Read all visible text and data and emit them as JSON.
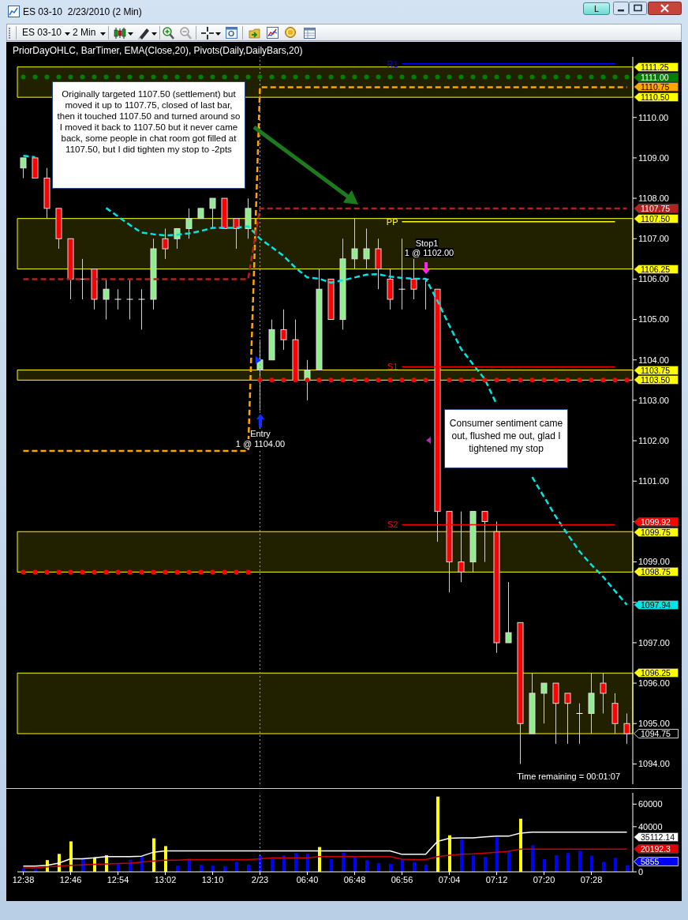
{
  "chart_data": [
    {
      "type": "candlestick",
      "title": "ES 03-10  2/23/2010 (2 Min)",
      "subtitle": "PriorDayOHLC, BarTimer, EMA(Close,20), Pivots(Daily,DailyBars,20)",
      "categories": [
        "12:38",
        null,
        null,
        null,
        "12:46",
        null,
        null,
        null,
        "12:54",
        null,
        null,
        null,
        "13:02",
        null,
        null,
        null,
        "13:10",
        null,
        null,
        null,
        "2/23",
        null,
        null,
        null,
        "06:40",
        null,
        null,
        null,
        "06:48",
        null,
        null,
        null,
        "06:56",
        null,
        null,
        null,
        "07:04",
        null,
        null,
        null,
        "07:12",
        null,
        null,
        null,
        "07:20",
        null,
        null,
        null,
        "07:28",
        null,
        null,
        null
      ],
      "ohlc": [
        [
          1108.75,
          1109.0,
          1108.5,
          1109.0
        ],
        [
          1109.0,
          1109.0,
          1108.5,
          1108.5
        ],
        [
          1108.5,
          1108.75,
          1107.5,
          1107.75
        ],
        [
          1107.75,
          1107.75,
          1106.75,
          1107.0
        ],
        [
          1107.0,
          1107.0,
          1105.5,
          1106.0
        ],
        [
          1106.0,
          1106.5,
          1105.5,
          1106.0
        ],
        [
          1106.25,
          1106.25,
          1105.25,
          1105.5
        ],
        [
          1105.5,
          1106.0,
          1105.0,
          1105.75
        ],
        [
          1105.5,
          1105.75,
          1105.25,
          1105.5
        ],
        [
          1105.5,
          1106.0,
          1105.0,
          1105.5
        ],
        [
          1105.5,
          1105.75,
          1104.75,
          1105.5
        ],
        [
          1105.5,
          1107.0,
          1105.25,
          1106.75
        ],
        [
          1107.0,
          1107.25,
          1106.5,
          1106.75
        ],
        [
          1107.0,
          1107.25,
          1106.75,
          1107.25
        ],
        [
          1107.25,
          1107.75,
          1107.0,
          1107.5
        ],
        [
          1107.5,
          1107.75,
          1107.5,
          1107.75
        ],
        [
          1107.75,
          1108.0,
          1107.25,
          1108.0
        ],
        [
          1108.0,
          1108.0,
          1107.25,
          1107.25
        ],
        [
          1107.5,
          1107.5,
          1106.75,
          1107.25
        ],
        [
          1107.25,
          1108.0,
          1107.0,
          1107.75
        ],
        [
          1103.75,
          1104.5,
          1102.75,
          1104.0
        ],
        [
          1104.0,
          1105.0,
          1104.0,
          1104.75
        ],
        [
          1104.75,
          1105.25,
          1104.25,
          1104.5
        ],
        [
          1104.5,
          1105.0,
          1103.5,
          1103.5
        ],
        [
          1103.5,
          1104.0,
          1103.0,
          1103.75
        ],
        [
          1103.75,
          1106.25,
          1103.75,
          1105.75
        ],
        [
          1106.0,
          1106.0,
          1105.0,
          1105.0
        ],
        [
          1105.0,
          1107.0,
          1104.75,
          1106.5
        ],
        [
          1106.5,
          1107.5,
          1106.25,
          1106.75
        ],
        [
          1106.5,
          1107.25,
          1106.25,
          1106.75
        ],
        [
          1106.75,
          1107.0,
          1105.75,
          1106.25
        ],
        [
          1106.0,
          1106.25,
          1105.25,
          1105.5
        ],
        [
          1105.75,
          1107.0,
          1105.25,
          1105.75
        ],
        [
          1106.0,
          1106.5,
          1105.5,
          1105.75
        ],
        [
          1106.0,
          1106.0,
          1105.25,
          1106.0
        ],
        [
          1105.75,
          1105.75,
          1099.5,
          1100.25
        ],
        [
          1100.25,
          1100.25,
          1098.25,
          1099.0
        ],
        [
          1099.0,
          1100.25,
          1098.5,
          1098.75
        ],
        [
          1099.0,
          1100.25,
          1098.75,
          1100.25
        ],
        [
          1100.25,
          1100.25,
          1099.0,
          1100.0
        ],
        [
          1099.75,
          1100.0,
          1096.75,
          1097.0
        ],
        [
          1097.0,
          1098.5,
          1097.0,
          1097.25
        ],
        [
          1097.5,
          1097.5,
          1094.0,
          1095.0
        ],
        [
          1094.75,
          1096.25,
          1094.75,
          1095.75
        ],
        [
          1095.75,
          1096.0,
          1095.0,
          1096.0
        ],
        [
          1096.0,
          1096.0,
          1094.5,
          1095.5
        ],
        [
          1095.75,
          1095.75,
          1094.5,
          1095.5
        ],
        [
          1095.25,
          1095.5,
          1094.5,
          1095.25
        ],
        [
          1095.25,
          1096.25,
          1094.75,
          1095.75
        ],
        [
          1096.0,
          1096.25,
          1095.25,
          1095.75
        ],
        [
          1095.5,
          1095.75,
          1094.75,
          1095.0
        ],
        [
          1095.0,
          1095.25,
          1094.5,
          1094.75
        ]
      ],
      "colors": [
        "#90ee90",
        "#ff0000",
        "#ff0000",
        "#ff0000",
        "#ff0000",
        "#ffffff",
        "#ff0000",
        "#90ee90",
        "#ffffff",
        "#ffffff",
        "#ffffff",
        "#90ee90",
        "#ff0000",
        "#90ee90",
        "#90ee90",
        "#90ee90",
        "#90ee90",
        "#ff0000",
        "#ff0000",
        "#90ee90",
        "#90ee90",
        "#90ee90",
        "#ff0000",
        "#ff0000",
        "#90ee90",
        "#90ee90",
        "#ff0000",
        "#90ee90",
        "#90ee90",
        "#90ee90",
        "#ff0000",
        "#ff0000",
        "#ffffff",
        "#ff0000",
        "#ffffff",
        "#ff0000",
        "#ff0000",
        "#ff0000",
        "#90ee90",
        "#ff0000",
        "#ff0000",
        "#90ee90",
        "#ff0000",
        "#90ee90",
        "#90ee90",
        "#ff0000",
        "#ff0000",
        "#ffffff",
        "#90ee90",
        "#ff0000",
        "#ff0000",
        "#ff0000"
      ],
      "series": [
        {
          "type": "line",
          "color": "#00e5e5",
          "line_style": "dashed",
          "values": [
            1109.05,
            1109.02,
            null,
            null,
            null,
            null,
            null,
            1107.76,
            1107.55,
            1107.34,
            1107.15,
            1107.11,
            1107.08,
            1107.1,
            1107.13,
            1107.19,
            1107.27,
            1107.27,
            1107.27,
            1107.31,
            1107.0,
            1106.79,
            1106.57,
            1106.28,
            1106.04,
            1106.01,
            1105.91,
            1105.97,
            1106.04,
            1106.11,
            1106.12,
            1106.06,
            1106.03,
            1106.01,
            1106.01,
            1105.46,
            1104.85,
            1104.27,
            1103.89,
            1103.52,
            1102.9,
            null,
            null,
            1101.1,
            1100.61,
            1100.12,
            1099.68,
            1099.26,
            1098.93,
            1098.63,
            1098.28,
            1097.94
          ]
        },
        {
          "type": "line",
          "color": "#ffa500",
          "line_style": "dashed",
          "values": [
            1101.75,
            1101.75,
            1101.75,
            1101.75,
            1101.75,
            1101.75,
            1101.75,
            1101.75,
            1101.75,
            1101.75,
            1101.75,
            1101.75,
            1101.75,
            1101.75,
            1101.75,
            1101.75,
            1101.75,
            1101.75,
            1101.75,
            1101.75,
            1110.75,
            1110.75,
            1110.75,
            1110.75,
            1110.75,
            1110.75,
            1110.75,
            1110.75,
            1110.75,
            1110.75,
            1110.75,
            1110.75,
            1110.75,
            1110.75,
            1110.75,
            1110.75,
            1110.75,
            1110.75,
            1110.75,
            1110.75,
            1110.75,
            1110.75,
            1110.75,
            1110.75,
            1110.75,
            1110.75,
            1110.75,
            1110.75,
            1110.75,
            1110.75,
            1110.75,
            1110.75
          ]
        },
        {
          "type": "line",
          "color": "#b22222",
          "line_style": "dashed",
          "values": [
            1106.0,
            1106.0,
            1106.0,
            1106.0,
            1106.0,
            1106.0,
            1106.0,
            1106.0,
            1106.0,
            1106.0,
            1106.0,
            1106.0,
            1106.0,
            1106.0,
            1106.0,
            1106.0,
            1106.0,
            1106.0,
            1106.0,
            1106.0,
            1107.75,
            1107.75,
            1107.75,
            1107.75,
            1107.75,
            1107.75,
            1107.75,
            1107.75,
            1107.75,
            1107.75,
            1107.75,
            1107.75,
            1107.75,
            1107.75,
            1107.75,
            1107.75,
            1107.75,
            1107.75,
            1107.75,
            1107.75,
            1107.75,
            1107.75,
            1107.75,
            1107.75,
            1107.75,
            1107.75,
            1107.75,
            1107.75,
            1107.75,
            1107.75,
            1107.75,
            1107.75
          ]
        },
        {
          "type": "scatter",
          "marker": "circle",
          "color": "#008000",
          "values": [
            1111.0,
            1111.0,
            1111.0,
            1111.0,
            1111.0,
            1111.0,
            1111.0,
            1111.0,
            1111.0,
            1111.0,
            1111.0,
            1111.0,
            1111.0,
            1111.0,
            1111.0,
            1111.0,
            1111.0,
            1111.0,
            1111.0,
            1111.0,
            1111.0,
            1111.0,
            1111.0,
            1111.0,
            1111.0,
            1111.0,
            1111.0,
            1111.0,
            1111.0,
            1111.0,
            1111.0,
            1111.0,
            1111.0,
            1111.0,
            1111.0,
            1111.0,
            1111.0,
            1111.0,
            1111.0,
            1111.0,
            1111.0,
            1111.0,
            1111.0,
            1111.0,
            1111.0,
            1111.0,
            1111.0,
            1111.0,
            1111.0,
            1111.0,
            1111.0,
            1111.0
          ]
        },
        {
          "type": "scatter",
          "marker": "circle",
          "color": "#ff0000",
          "values": [
            1098.75,
            1098.75,
            1098.75,
            1098.75,
            1098.75,
            1098.75,
            1098.75,
            1098.75,
            1098.75,
            1098.75,
            1098.75,
            1098.75,
            1098.75,
            1098.75,
            1098.75,
            1098.75,
            1098.75,
            1098.75,
            1098.75,
            1098.75,
            1103.5,
            1103.5,
            1103.5,
            1103.5,
            1103.5,
            1103.5,
            1103.5,
            1103.5,
            1103.5,
            1103.5,
            1103.5,
            1103.5,
            1103.5,
            1103.5,
            1103.5,
            1103.5,
            1103.5,
            1103.5,
            1103.5,
            1103.5,
            1103.5,
            1103.5,
            1103.5,
            1103.5,
            1103.5,
            1103.5,
            1103.5,
            1103.5,
            1103.5,
            1103.5,
            1103.5,
            1103.5
          ]
        },
        {
          "type": "line",
          "name": "R1",
          "color": "#0000ff",
          "values": [
            null,
            null,
            null,
            null,
            null,
            null,
            null,
            null,
            null,
            null,
            null,
            null,
            null,
            null,
            null,
            null,
            null,
            null,
            null,
            null,
            null,
            null,
            null,
            null,
            null,
            null,
            null,
            null,
            null,
            null,
            null,
            null,
            1111.33,
            1111.33,
            1111.33,
            1111.33,
            1111.33,
            1111.33,
            1111.33,
            1111.33,
            1111.33,
            1111.33,
            1111.33,
            1111.33,
            1111.33,
            1111.33,
            1111.33,
            1111.33,
            1111.33,
            1111.33,
            1111.33,
            null
          ]
        },
        {
          "type": "line",
          "name": "PP",
          "color": "#ffff00",
          "values": [
            null,
            null,
            null,
            null,
            null,
            null,
            null,
            null,
            null,
            null,
            null,
            null,
            null,
            null,
            null,
            null,
            null,
            null,
            null,
            null,
            null,
            null,
            null,
            null,
            null,
            null,
            null,
            null,
            null,
            null,
            null,
            null,
            1107.42,
            1107.42,
            1107.42,
            1107.42,
            1107.42,
            1107.42,
            1107.42,
            1107.42,
            1107.42,
            1107.42,
            1107.42,
            1107.42,
            1107.42,
            1107.42,
            1107.42,
            1107.42,
            1107.42,
            1107.42,
            1107.42,
            null
          ]
        },
        {
          "type": "line",
          "name": "S1",
          "color": "#ff0000",
          "values": [
            null,
            null,
            null,
            null,
            null,
            null,
            null,
            null,
            null,
            null,
            null,
            null,
            null,
            null,
            null,
            null,
            null,
            null,
            null,
            null,
            null,
            null,
            null,
            null,
            null,
            null,
            null,
            null,
            null,
            null,
            null,
            null,
            1103.83,
            1103.83,
            1103.83,
            1103.83,
            1103.83,
            1103.83,
            1103.83,
            1103.83,
            1103.83,
            1103.83,
            1103.83,
            1103.83,
            1103.83,
            1103.83,
            1103.83,
            1103.83,
            1103.83,
            1103.83,
            1103.83,
            null
          ]
        },
        {
          "type": "line",
          "name": "S2",
          "color": "#ff0000",
          "values": [
            null,
            null,
            null,
            null,
            null,
            null,
            null,
            null,
            null,
            null,
            null,
            null,
            null,
            null,
            null,
            null,
            null,
            null,
            null,
            null,
            null,
            null,
            null,
            null,
            null,
            null,
            null,
            null,
            null,
            null,
            null,
            null,
            1099.92,
            1099.92,
            1099.92,
            1099.92,
            1099.92,
            1099.92,
            1099.92,
            1099.92,
            1099.92,
            1099.92,
            1099.92,
            1099.92,
            1099.92,
            1099.92,
            1099.92,
            1099.92,
            1099.92,
            1099.92,
            1099.92,
            null
          ]
        }
      ],
      "ylim": [
        1093.5,
        1111.5
      ],
      "yticks": [
        {
          "value": 1094,
          "label": "1094.00"
        },
        {
          "value": 1095,
          "label": "1095.00"
        },
        {
          "value": 1096,
          "label": "1096.00"
        },
        {
          "value": 1097,
          "label": "1097.00"
        },
        {
          "value": 1098,
          "label": null
        },
        {
          "value": 1099,
          "label": "1099.00"
        },
        {
          "value": 1100,
          "label": null
        },
        {
          "value": 1101,
          "label": "1101.00"
        },
        {
          "value": 1102,
          "label": "1102.00"
        },
        {
          "value": 1103,
          "label": "1103.00"
        },
        {
          "value": 1104,
          "label": "1104.00"
        },
        {
          "value": 1105,
          "label": "1105.00"
        },
        {
          "value": 1106,
          "label": "1106.00"
        },
        {
          "value": 1107,
          "label": "1107.00"
        },
        {
          "value": 1108,
          "label": "1108.00"
        },
        {
          "value": 1109,
          "label": "1109.00"
        },
        {
          "value": 1110,
          "label": "1110.00"
        }
      ],
      "tick_labels": "y",
      "bands": [
        {
          "axis": "y",
          "from": 1110.5,
          "to": 1111.25,
          "color": "#ffff00"
        },
        {
          "axis": "y",
          "from": 1106.25,
          "to": 1107.5,
          "color": "#ffff00"
        },
        {
          "axis": "y",
          "from": 1103.5,
          "to": 1103.75,
          "color": "#ffff00"
        },
        {
          "axis": "y",
          "from": 1098.75,
          "to": 1099.75,
          "color": "#ffff00"
        },
        {
          "axis": "y",
          "from": 1094.75,
          "to": 1096.25,
          "color": "#ffff00"
        }
      ],
      "ref_lines": [
        {
          "axis": "x",
          "value": "2/23",
          "color": "#9a9a9a",
          "line_style": "dotted"
        }
      ],
      "annotations": [
        "Originally targeted 1107.50 (settlement) but moved it up to 1107.75, closed of last bar, then it touched 1107.50 and turned around so I moved it back to 1107.50 but it never came back, some people in chat room got filled at 1107.50, but I did tighten my stop to -2pts",
        "Consumer sentiment came out, flushed me out, glad I tightened my stop",
        "Entry",
        "1 @ 1104.00",
        "Stop1",
        "1 @ 1102.00",
        "Time remaining = 00:01:07",
        "ES 03-10",
        "2 Min",
        "L",
        "1111.25",
        "1111.00",
        "1110.75",
        "1110.50",
        "1107.75",
        "1107.50",
        "1106.25",
        "1103.75",
        "1103.50",
        "1099.92",
        "1099.75",
        "1098.75",
        "1097.94",
        "1096.25",
        "1094.75"
      ]
    },
    {
      "type": "bar",
      "categories": [
        "12:38",
        null,
        null,
        null,
        "12:46",
        null,
        null,
        null,
        "12:54",
        null,
        null,
        null,
        "13:02",
        null,
        null,
        null,
        "13:10",
        null,
        null,
        null,
        "2/23",
        null,
        null,
        null,
        "06:40",
        null,
        null,
        null,
        "06:48",
        null,
        null,
        null,
        "06:56",
        null,
        null,
        null,
        "07:04",
        null,
        null,
        null,
        "07:12",
        null,
        null,
        null,
        "07:20",
        null,
        null,
        null,
        "07:28",
        null,
        null,
        null
      ],
      "series": [
        {
          "values": [
            3100,
            2300,
            10400,
            15900,
            27000,
            12400,
            12800,
            14700,
            7000,
            10800,
            13500,
            29700,
            22800,
            5400,
            11600,
            6200,
            5400,
            5000,
            8900,
            6200,
            14700,
            11600,
            14700,
            16600,
            15900,
            22000,
            11200,
            17000,
            13900,
            10400,
            7700,
            7000,
            10800,
            8600,
            6200,
            66700,
            32400,
            29000,
            14700,
            13200,
            30500,
            18600,
            47100,
            23500,
            11200,
            14700,
            16600,
            18600,
            14300,
            8900,
            12400,
            5855
          ],
          "colors": [
            "#0000ff",
            "#0000ff",
            "#ffff00",
            "#ffff00",
            "#ffff00",
            "#0000ff",
            "#ffff00",
            "#ffff00",
            "#0000ff",
            "#0000ff",
            "#0000ff",
            "#ffff00",
            "#ffff00",
            "#0000ff",
            "#0000ff",
            "#0000ff",
            "#0000ff",
            "#0000ff",
            "#0000ff",
            "#0000ff",
            "#0000ff",
            "#0000ff",
            "#0000ff",
            "#0000ff",
            "#0000ff",
            "#ffff00",
            "#0000ff",
            "#0000ff",
            "#0000ff",
            "#0000ff",
            "#0000ff",
            "#0000ff",
            "#0000ff",
            "#0000ff",
            "#0000ff",
            "#ffff00",
            "#ffff00",
            "#0000ff",
            "#0000ff",
            "#0000ff",
            "#0000ff",
            "#0000ff",
            "#ffff00",
            "#0000ff",
            "#0000ff",
            "#0000ff",
            "#0000ff",
            "#0000ff",
            "#0000ff",
            "#0000ff",
            "#0000ff",
            "#0000ff"
          ]
        },
        {
          "type": "line",
          "color": "#ffffff",
          "values": [
            5000,
            5000,
            5800,
            7700,
            11600,
            11600,
            12400,
            13500,
            13500,
            13500,
            13900,
            17400,
            18600,
            18600,
            18600,
            18600,
            18600,
            18600,
            18600,
            18600,
            18600,
            18600,
            18600,
            18600,
            18600,
            18600,
            18600,
            18600,
            18600,
            18600,
            18600,
            18600,
            15500,
            15500,
            15500,
            27000,
            29700,
            30100,
            30100,
            30900,
            31600,
            31600,
            34300,
            35100,
            35100,
            35100,
            35100,
            35100,
            35100,
            35100,
            35100,
            35112.14
          ]
        },
        {
          "type": "line",
          "color": "#cc0000",
          "values": [
            3500,
            3500,
            4300,
            5000,
            5800,
            6200,
            6600,
            7000,
            7300,
            7700,
            8600,
            9700,
            10400,
            10400,
            10800,
            10800,
            10800,
            10800,
            10800,
            10800,
            11600,
            12400,
            12400,
            12400,
            12400,
            13500,
            13500,
            13500,
            13500,
            13500,
            13500,
            13500,
            11200,
            10800,
            10800,
            13500,
            14700,
            15500,
            15900,
            16600,
            17400,
            18200,
            20100,
            20100,
            20100,
            20100,
            20100,
            20100,
            20100,
            20100,
            20100,
            20192.3
          ]
        }
      ],
      "ylim": [
        0,
        70000
      ],
      "yticks": [
        0,
        40000,
        60000
      ],
      "ref_lines": [
        {
          "axis": "x",
          "value": "2/23",
          "color": "#9a9a9a",
          "line_style": "dotted"
        }
      ],
      "annotations": [
        "35112.14",
        "20192.3",
        "5855"
      ]
    }
  ]
}
